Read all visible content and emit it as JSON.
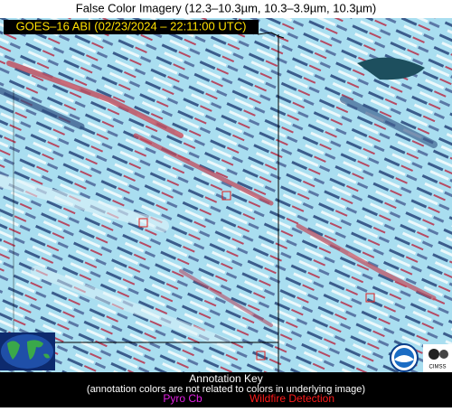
{
  "header": {
    "title": "False Color Imagery (12.3–10.3µm, 10.3–3.9µm, 10.3µm)",
    "subtitle": "GOES–16 ABI (02/23/2024 – 22:11:00 UTC)"
  },
  "footer": {
    "key_title": "Annotation Key",
    "key_note": "(annotation colors are not related to colors in underlying image)",
    "pyro_cb": "Pyro Cb",
    "wildfire": "Wildfire Detection"
  },
  "logos": {
    "cimss": "CIMSS"
  }
}
